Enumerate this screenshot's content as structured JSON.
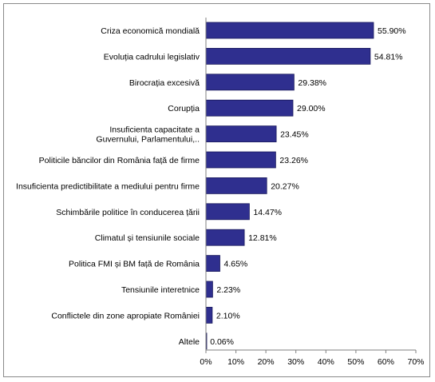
{
  "chart_data": {
    "type": "bar",
    "orientation": "horizontal",
    "categories": [
      "Criza economică mondială",
      "Evoluția cadrului legislativ",
      "Birocrația excesivă",
      "Corupția",
      "Insuficienta  capacitate a Guvernului, Parlamentului,..",
      "Politicile băncilor din România față de firme",
      "Insuficienta predictibilitate a mediului pentru firme",
      "Schimbările politice în conducerea țării",
      "Climatul și tensiunile sociale",
      "Politica FMI și BM față de România",
      "Tensiunile interetnice",
      "Conflictele din zone apropiate României",
      "Altele"
    ],
    "category_lines": [
      [
        "Criza economică mondială"
      ],
      [
        "Evoluția cadrului legislativ"
      ],
      [
        "Birocrația excesivă"
      ],
      [
        "Corupția"
      ],
      [
        "Insuficienta  capacitate a",
        "Guvernului, Parlamentului,.."
      ],
      [
        "Politicile băncilor din România față de firme"
      ],
      [
        "Insuficienta predictibilitate a mediului pentru firme"
      ],
      [
        "Schimbările politice în conducerea țării"
      ],
      [
        "Climatul și tensiunile sociale"
      ],
      [
        "Politica FMI și BM față de România"
      ],
      [
        "Tensiunile interetnice"
      ],
      [
        "Conflictele din zone apropiate României"
      ],
      [
        "Altele"
      ]
    ],
    "values": [
      55.9,
      54.81,
      29.38,
      29.0,
      23.45,
      23.26,
      20.27,
      14.47,
      12.81,
      4.65,
      2.23,
      2.1,
      0.06
    ],
    "value_labels": [
      "55.90%",
      "54.81%",
      "29.38%",
      "29.00%",
      "23.45%",
      "23.26%",
      "20.27%",
      "14.47%",
      "12.81%",
      "4.65%",
      "2.23%",
      "2.10%",
      "0.06%"
    ],
    "x_ticks": [
      "0%",
      "10%",
      "20%",
      "30%",
      "40%",
      "50%",
      "60%",
      "70%"
    ],
    "xlim": [
      0,
      70
    ],
    "title": "",
    "xlabel": "",
    "ylabel": "",
    "grid": false,
    "legend": "none",
    "bar_color": "#2f2f8f",
    "bar_edge_color": "#1a1a5c"
  }
}
